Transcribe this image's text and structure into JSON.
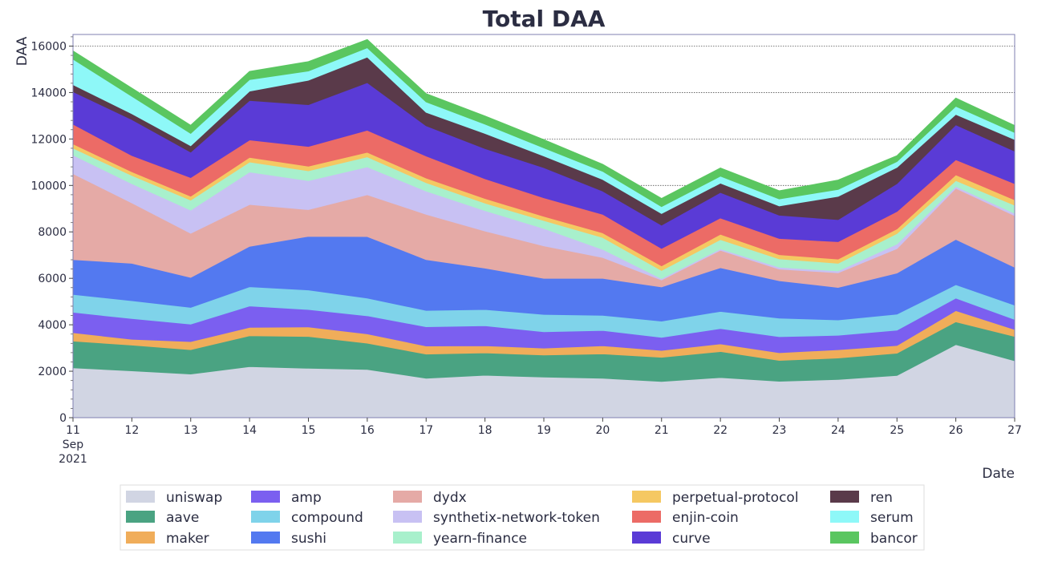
{
  "chart_data": {
    "type": "area",
    "stacked": true,
    "title": "Total DAA",
    "xlabel": "Date",
    "ylabel": "DAA",
    "x": [
      11,
      12,
      13,
      14,
      15,
      16,
      17,
      18,
      19,
      20,
      21,
      22,
      23,
      24,
      25,
      26,
      27
    ],
    "x_tick_labels": [
      "11",
      "12",
      "13",
      "14",
      "15",
      "16",
      "17",
      "18",
      "19",
      "20",
      "21",
      "22",
      "23",
      "24",
      "25",
      "26",
      "27"
    ],
    "x_tick_sublabels": [
      "Sep",
      "2021"
    ],
    "ylim": [
      0,
      16500
    ],
    "y_ticks": [
      0,
      2000,
      4000,
      6000,
      8000,
      10000,
      12000,
      14000,
      16000
    ],
    "grid": "horizontal-dotted",
    "legend_position": "bottom",
    "series": [
      {
        "name": "uniswap",
        "color": "#d1d5e3",
        "values": [
          2150,
          2020,
          1880,
          2200,
          2130,
          2080,
          1700,
          1830,
          1750,
          1700,
          1560,
          1730,
          1570,
          1650,
          1820,
          3150,
          2450
        ]
      },
      {
        "name": "aave",
        "color": "#4aa382",
        "values": [
          1150,
          1110,
          1050,
          1330,
          1370,
          1130,
          1040,
          960,
          950,
          1050,
          1040,
          1120,
          900,
          920,
          960,
          980,
          1050
        ]
      },
      {
        "name": "maker",
        "color": "#f0ad5a",
        "values": [
          360,
          250,
          350,
          360,
          410,
          400,
          350,
          310,
          300,
          350,
          300,
          330,
          330,
          360,
          330,
          480,
          300
        ]
      },
      {
        "name": "amp",
        "color": "#7b5ff0",
        "values": [
          880,
          890,
          750,
          920,
          750,
          780,
          830,
          860,
          700,
          660,
          560,
          660,
          690,
          620,
          660,
          540,
          430
        ]
      },
      {
        "name": "compound",
        "color": "#7fd3ea",
        "values": [
          770,
          770,
          720,
          830,
          840,
          760,
          700,
          700,
          750,
          650,
          700,
          740,
          800,
          660,
          690,
          580,
          620
        ]
      },
      {
        "name": "sushi",
        "color": "#5379f0",
        "values": [
          1500,
          1610,
          1290,
          1740,
          2310,
          2650,
          2190,
          1780,
          1550,
          1590,
          1470,
          1880,
          1610,
          1400,
          1770,
          1950,
          1630
        ]
      },
      {
        "name": "dydx",
        "color": "#e5aaa6",
        "values": [
          3700,
          2600,
          1900,
          1800,
          1150,
          1800,
          1950,
          1600,
          1400,
          900,
          300,
          750,
          500,
          630,
          1050,
          2200,
          2220
        ]
      },
      {
        "name": "synthetix-network-token",
        "color": "#c8c1f3",
        "values": [
          800,
          830,
          1000,
          1400,
          1250,
          1200,
          1000,
          880,
          750,
          350,
          60,
          60,
          80,
          80,
          200,
          80,
          100
        ]
      },
      {
        "name": "yearn-finance",
        "color": "#a8f0cc",
        "values": [
          300,
          350,
          430,
          430,
          420,
          430,
          360,
          320,
          340,
          510,
          350,
          400,
          360,
          330,
          450,
          250,
          350
        ]
      },
      {
        "name": "perpetual-protocol",
        "color": "#f5c862",
        "values": [
          180,
          160,
          170,
          200,
          200,
          200,
          200,
          200,
          180,
          200,
          200,
          230,
          180,
          180,
          200,
          250,
          230
        ]
      },
      {
        "name": "enjin-coin",
        "color": "#ec6b66",
        "values": [
          850,
          700,
          800,
          750,
          850,
          950,
          950,
          850,
          800,
          800,
          750,
          700,
          700,
          750,
          750,
          650,
          700
        ]
      },
      {
        "name": "curve",
        "color": "#5a3bd6",
        "values": [
          1400,
          1550,
          1100,
          1700,
          1800,
          2050,
          1300,
          1300,
          1300,
          1000,
          1000,
          1100,
          1000,
          950,
          1200,
          1500,
          1400
        ]
      },
      {
        "name": "ren",
        "color": "#5a3a4a",
        "values": [
          300,
          250,
          270,
          400,
          1050,
          1100,
          580,
          650,
          500,
          500,
          500,
          400,
          400,
          1000,
          700,
          450,
          500
        ]
      },
      {
        "name": "serum",
        "color": "#8ef8f8",
        "values": [
          1100,
          750,
          530,
          500,
          400,
          400,
          450,
          400,
          350,
          350,
          300,
          300,
          300,
          300,
          250,
          350,
          300
        ]
      },
      {
        "name": "bancor",
        "color": "#5ac660",
        "values": [
          350,
          350,
          350,
          350,
          400,
          350,
          350,
          350,
          350,
          300,
          350,
          350,
          350,
          400,
          250,
          350,
          300
        ]
      }
    ]
  }
}
